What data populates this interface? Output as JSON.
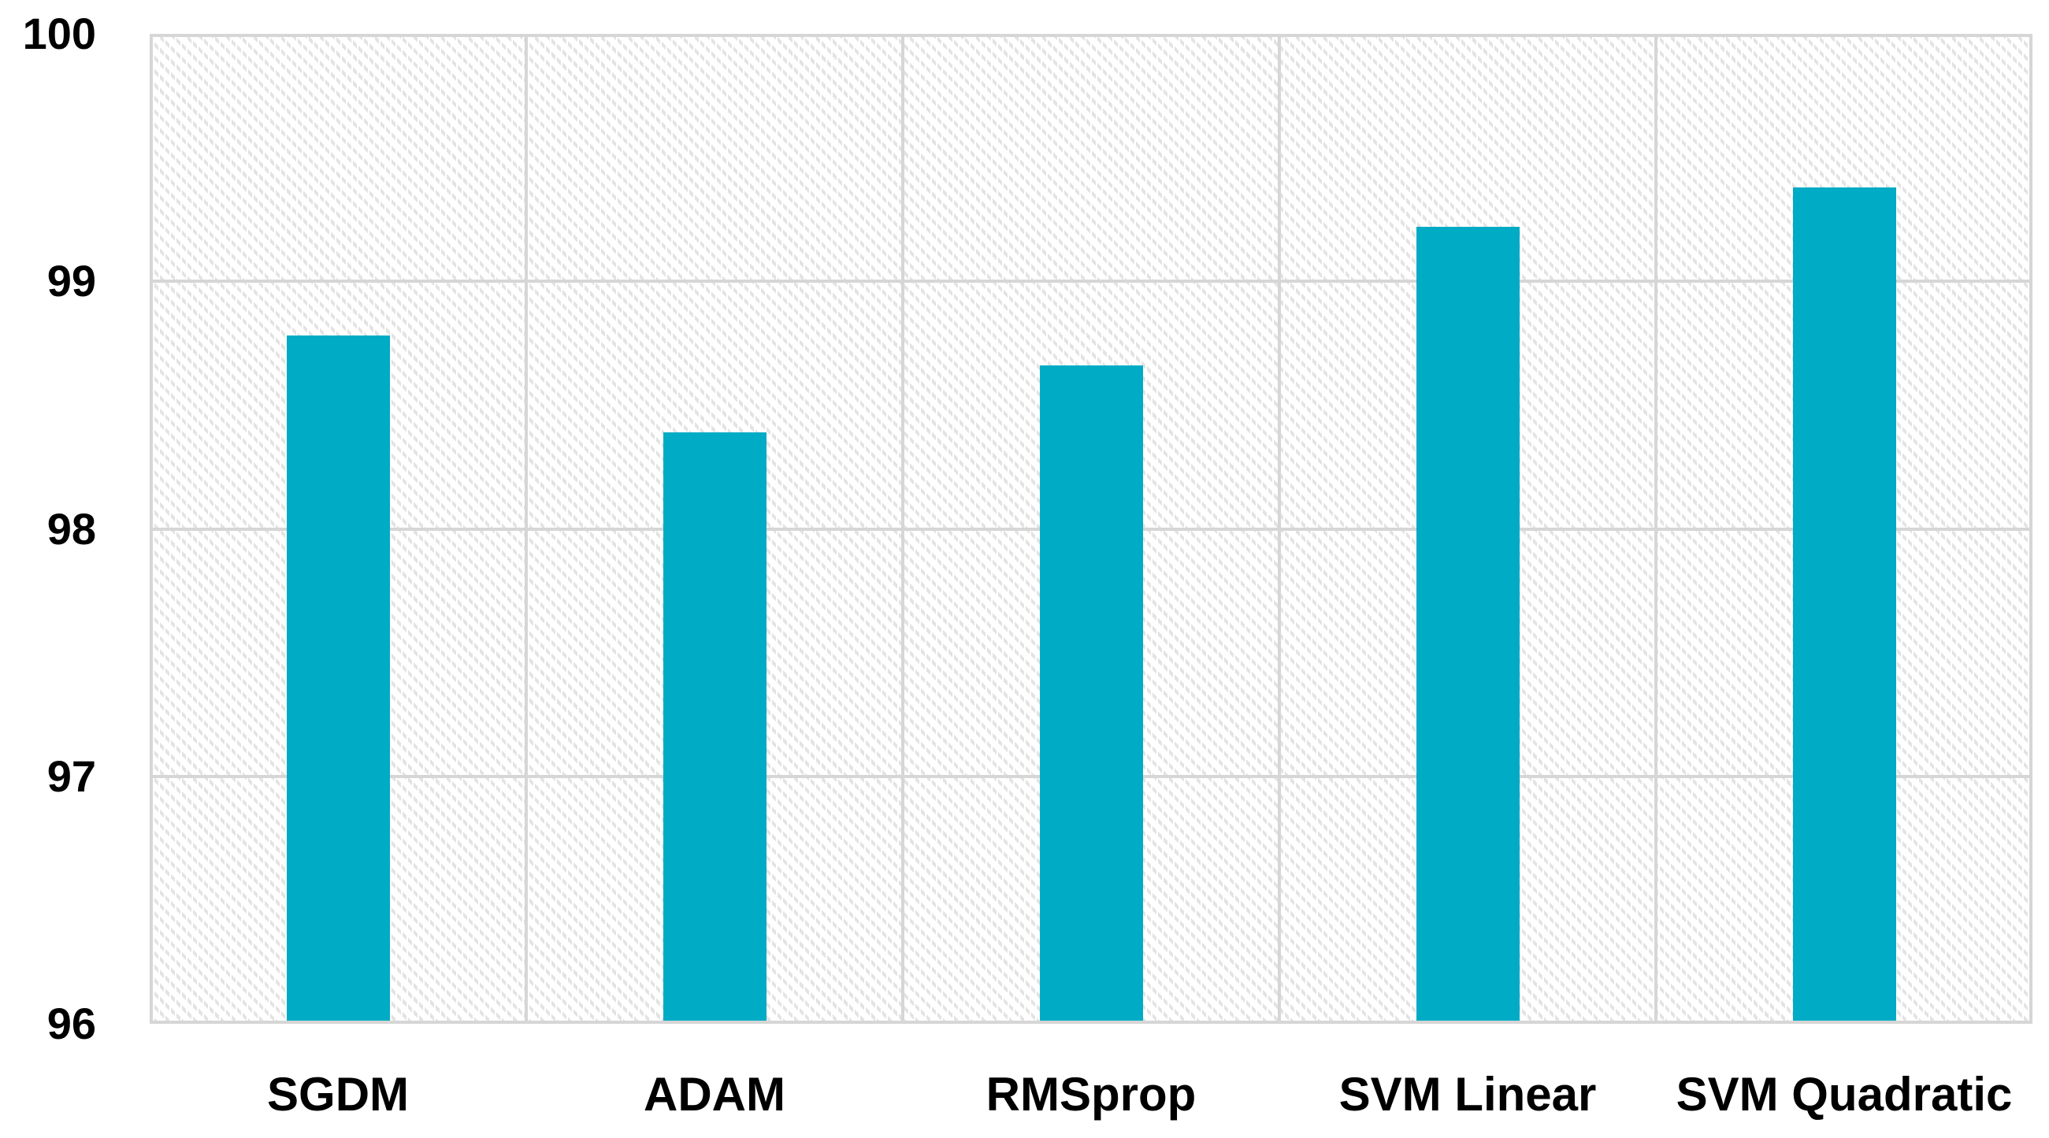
{
  "chart_data": {
    "type": "bar",
    "categories": [
      "SGDM",
      "ADAM",
      "RMSprop",
      "SVM Linear",
      "SVM Quadratic"
    ],
    "values": [
      98.78,
      98.39,
      98.66,
      99.22,
      99.38
    ],
    "title": "",
    "xlabel": "",
    "ylabel": "",
    "ylim": [
      96,
      100
    ],
    "yticks": [
      96,
      97,
      98,
      99,
      100
    ],
    "grid": true,
    "legend_position": "none",
    "colors": {
      "bar": "#00abc5",
      "gridline": "#d6d6d6",
      "hatch": "#e3e3e3",
      "axis_text": "#000000",
      "background": "#ffffff"
    }
  }
}
